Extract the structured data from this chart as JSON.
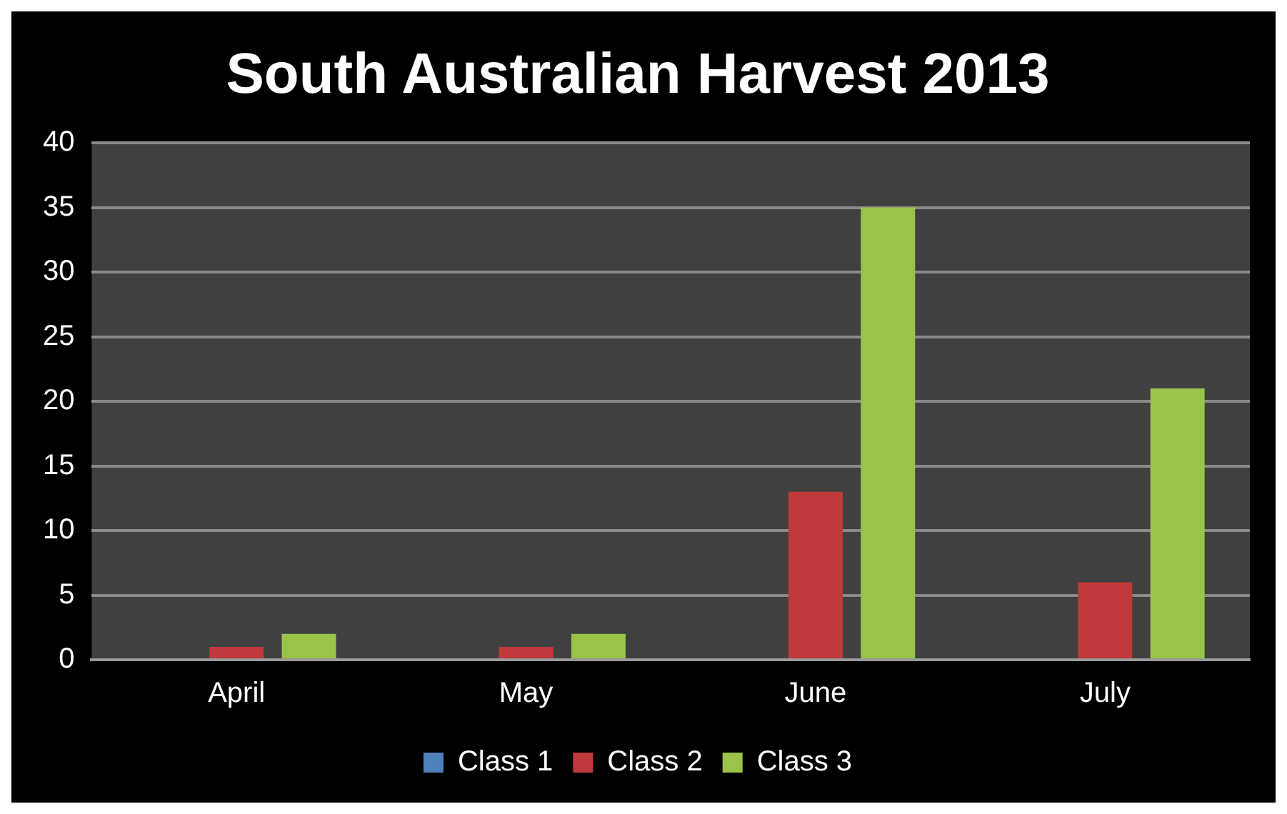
{
  "chart_data": {
    "type": "bar",
    "title": "South Australian Harvest 2013",
    "categories": [
      "April",
      "May",
      "June",
      "July"
    ],
    "series": [
      {
        "name": "Class 1",
        "color": "#4f81bd",
        "values": [
          0,
          0,
          0,
          0
        ]
      },
      {
        "name": "Class 2",
        "color": "#c0393b",
        "values": [
          1,
          1,
          13,
          6
        ]
      },
      {
        "name": "Class 3",
        "color": "#9bc34a",
        "values": [
          2,
          2,
          35,
          21
        ]
      }
    ],
    "ylim": [
      0,
      40
    ],
    "yticks": [
      0,
      5,
      10,
      15,
      20,
      25,
      30,
      35,
      40
    ],
    "grid": "y",
    "legend": "bottom"
  }
}
